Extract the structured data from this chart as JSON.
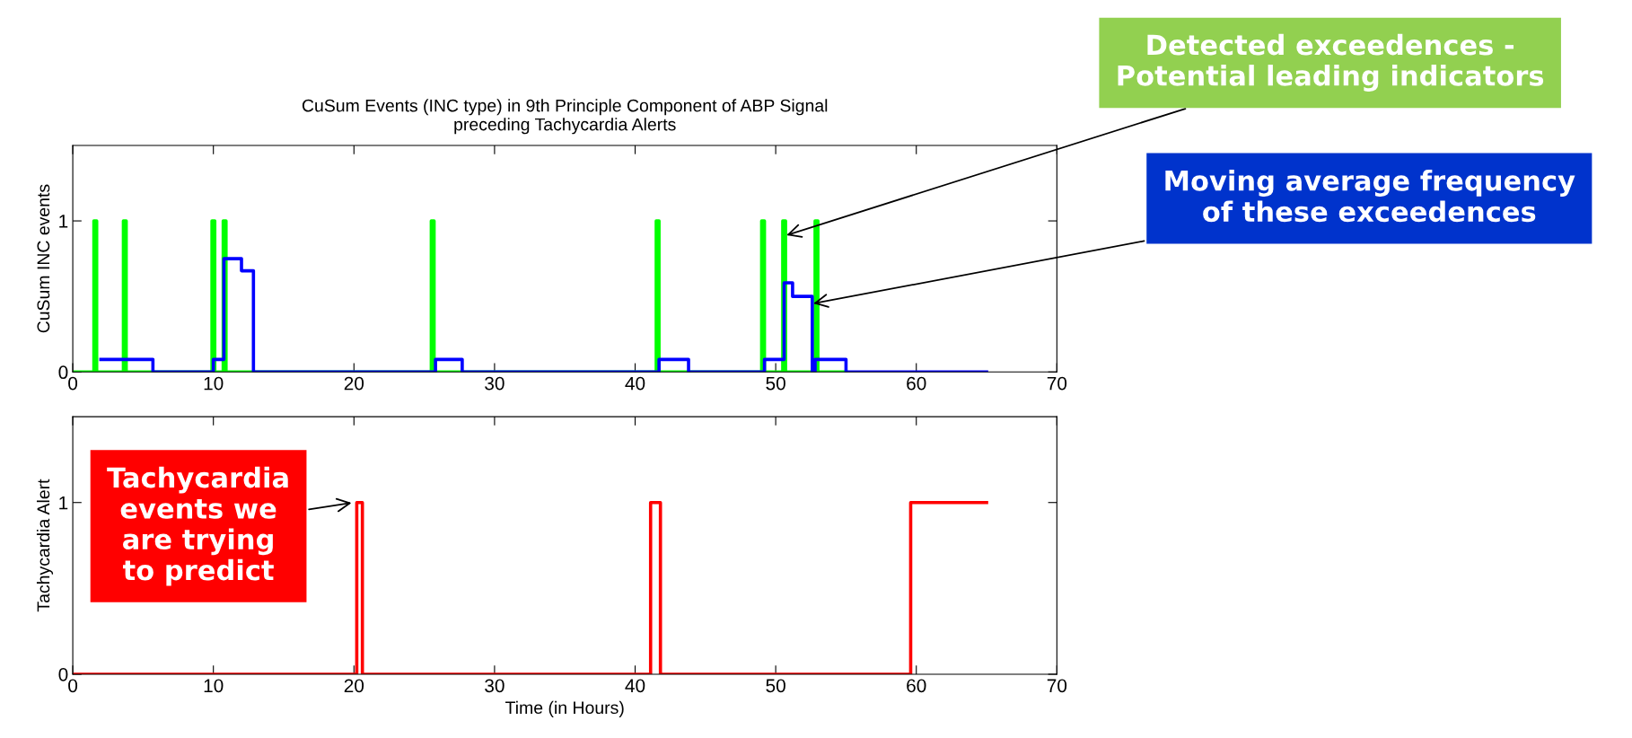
{
  "chart_data": [
    {
      "type": "step",
      "title": "CuSum Events (INC type) in 9th Principle Component of ABP Signal\npreceding Tachycardia Alerts",
      "ylabel": "CuSum INC events",
      "xlim": [
        0,
        70
      ],
      "xticks": [
        0,
        10,
        20,
        30,
        40,
        50,
        60,
        70
      ],
      "ylim": [
        0,
        1.5
      ],
      "yticks": [
        0,
        1
      ],
      "grid": false,
      "series": [
        {
          "color": "#00ff00",
          "x": [
            0,
            1.5,
            1.7,
            3.6,
            3.8,
            9.9,
            10.1,
            10.7,
            10.9,
            25.5,
            25.7,
            41.5,
            41.7,
            49.0,
            49.2,
            50.5,
            50.7,
            52.8,
            53.0,
            55
          ],
          "values": [
            0,
            1,
            0,
            1,
            0,
            1,
            0,
            1,
            0,
            1,
            0,
            1,
            0,
            1,
            0,
            1,
            0,
            1,
            0,
            0
          ]
        },
        {
          "color": "#0000ff",
          "x": [
            2,
            5.7,
            10,
            10.75,
            12,
            12.85,
            25.8,
            27.7,
            41.7,
            43.8,
            49.2,
            50.6,
            51.2,
            52.6,
            52.8,
            55,
            65
          ],
          "values": [
            0.083,
            0,
            0.083,
            0.75,
            0.67,
            0,
            0.083,
            0,
            0.083,
            0,
            0.083,
            0.59,
            0.5,
            0,
            0.083,
            0,
            0
          ]
        }
      ],
      "annotations": [
        {
          "text": "Detected exceedences -\nPotential leading indicators",
          "x": 50.6,
          "y": 0.9
        },
        {
          "text": "Moving average frequency\nof these exceedences",
          "x": 52.5,
          "y": 0.45
        }
      ]
    },
    {
      "type": "step",
      "ylabel": "Tachycardia Alert",
      "xlabel": "Time (in Hours)",
      "xlim": [
        0,
        70
      ],
      "xticks": [
        0,
        10,
        20,
        30,
        40,
        50,
        60,
        70
      ],
      "ylim": [
        0,
        1.5
      ],
      "yticks": [
        0,
        1
      ],
      "grid": false,
      "series": [
        {
          "color": "#ff0000",
          "x": [
            0,
            20.2,
            20.6,
            41.1,
            41.8,
            59.6,
            65
          ],
          "values": [
            0,
            1,
            0,
            1,
            0,
            1,
            1
          ]
        }
      ],
      "annotations": [
        {
          "text": "Tachycardia\nevents we\nare trying\nto predict",
          "x": 20.0,
          "y": 1.0
        }
      ]
    }
  ]
}
